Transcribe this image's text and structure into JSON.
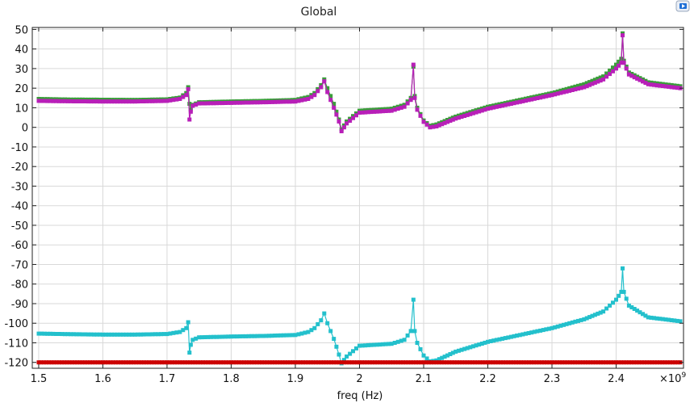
{
  "chart_data": {
    "type": "line",
    "title": "Global",
    "xlabel": "freq (Hz)",
    "ylabel": "",
    "x_multiplier": "×10",
    "x_exponent": "9",
    "xlim": [
      1.49,
      2.505
    ],
    "ylim": [
      -123,
      51
    ],
    "xticks": [
      "1.5",
      "1.6",
      "1.7",
      "1.8",
      "1.9",
      "2",
      "2.1",
      "2.2",
      "2.3",
      "2.4"
    ],
    "yticks": [
      "50",
      "40",
      "30",
      "20",
      "10",
      "0",
      "-10",
      "-20",
      "-30",
      "-40",
      "-50",
      "-60",
      "-70",
      "-80",
      "-90",
      "-100",
      "-110",
      "-120"
    ],
    "grid": true,
    "legend": "none",
    "series": [
      {
        "color": "#3a9d3a",
        "x": [
          1.5,
          1.55,
          1.6,
          1.65,
          1.7,
          1.72,
          1.73,
          1.733,
          1.735,
          1.737,
          1.74,
          1.75,
          1.8,
          1.85,
          1.9,
          1.92,
          1.93,
          1.94,
          1.945,
          1.95,
          1.96,
          1.968,
          1.972,
          1.98,
          2.0,
          2.05,
          2.07,
          2.08,
          2.084,
          2.086,
          2.09,
          2.1,
          2.11,
          2.12,
          2.15,
          2.2,
          2.25,
          2.3,
          2.35,
          2.38,
          2.4,
          2.408,
          2.41,
          2.412,
          2.42,
          2.45,
          2.5
        ],
        "y": [
          14.5,
          14.2,
          14.1,
          14.0,
          14.3,
          15.2,
          17.5,
          20.5,
          12,
          9,
          11.5,
          12.8,
          13.2,
          13.5,
          14,
          15.5,
          17.5,
          21.5,
          24.5,
          20,
          12,
          4,
          -1,
          3,
          8.5,
          9.5,
          11.5,
          15,
          31,
          16,
          10,
          3.5,
          0.8,
          1.5,
          5.5,
          10.5,
          14,
          17.5,
          22,
          26,
          32,
          35,
          48,
          34,
          28,
          23,
          21
        ]
      },
      {
        "color": "#b81fb8",
        "x": [
          1.5,
          1.55,
          1.6,
          1.65,
          1.7,
          1.72,
          1.73,
          1.733,
          1.735,
          1.737,
          1.74,
          1.75,
          1.8,
          1.85,
          1.9,
          1.92,
          1.93,
          1.94,
          1.945,
          1.95,
          1.96,
          1.968,
          1.972,
          1.98,
          2.0,
          2.05,
          2.07,
          2.08,
          2.084,
          2.086,
          2.09,
          2.1,
          2.11,
          2.12,
          2.15,
          2.2,
          2.25,
          2.3,
          2.35,
          2.38,
          2.4,
          2.408,
          2.41,
          2.412,
          2.42,
          2.45,
          2.5
        ],
        "y": [
          13.5,
          13.3,
          13.2,
          13.2,
          13.5,
          14.5,
          16.5,
          19.5,
          4,
          8,
          11,
          12.2,
          12.5,
          12.8,
          13.2,
          14.5,
          16.5,
          20.5,
          23.5,
          18,
          10,
          3,
          -2,
          2,
          7.5,
          8.5,
          10.5,
          14,
          32,
          15,
          9,
          2.8,
          0,
          0.5,
          4.5,
          9.5,
          13,
          16.5,
          20.5,
          24.5,
          30,
          33,
          47,
          33,
          27,
          22,
          20
        ]
      },
      {
        "color": "#23c0cc",
        "x": [
          1.5,
          1.55,
          1.6,
          1.65,
          1.7,
          1.72,
          1.73,
          1.733,
          1.735,
          1.737,
          1.74,
          1.75,
          1.8,
          1.85,
          1.9,
          1.92,
          1.93,
          1.94,
          1.945,
          1.95,
          1.96,
          1.968,
          1.972,
          1.98,
          2.0,
          2.05,
          2.07,
          2.08,
          2.084,
          2.086,
          2.09,
          2.1,
          2.11,
          2.12,
          2.15,
          2.2,
          2.25,
          2.3,
          2.35,
          2.38,
          2.4,
          2.408,
          2.41,
          2.412,
          2.42,
          2.45,
          2.5
        ],
        "y": [
          -105.3,
          -105.6,
          -105.8,
          -105.8,
          -105.5,
          -104.5,
          -102.5,
          -99.5,
          -115,
          -111,
          -108.5,
          -107.2,
          -106.8,
          -106.5,
          -106,
          -104.5,
          -102.5,
          -98.5,
          -95,
          -100,
          -108,
          -116,
          -120.5,
          -117,
          -111.5,
          -110.5,
          -108.5,
          -104,
          -88,
          -104,
          -110,
          -116.5,
          -119.5,
          -119,
          -114.5,
          -109.5,
          -106,
          -102.5,
          -98,
          -94,
          -88,
          -84,
          -72,
          -84,
          -91,
          -97,
          -99
        ]
      },
      {
        "color": "#cc0000",
        "x": [
          1.5,
          2.5
        ],
        "y": [
          -120,
          -120
        ]
      }
    ]
  }
}
